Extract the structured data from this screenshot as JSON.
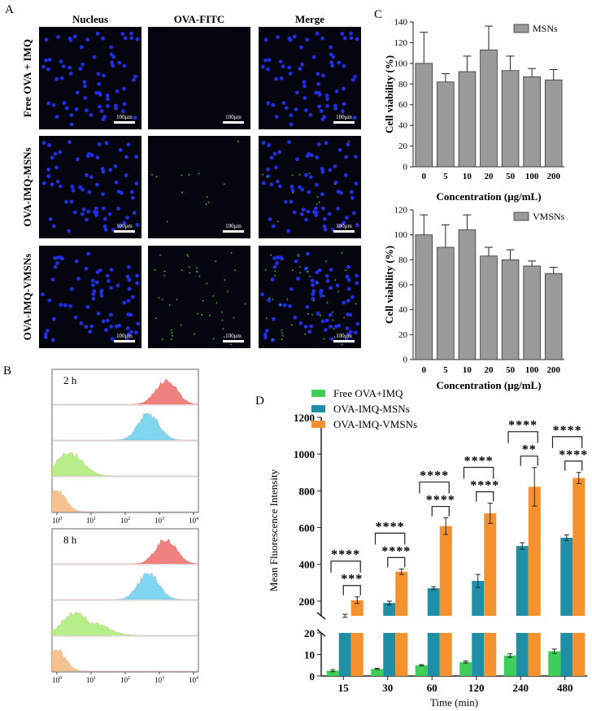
{
  "panels": {
    "a": "A",
    "b": "B",
    "c": "C",
    "d": "D"
  },
  "panel_a": {
    "column_headers": [
      "Nucleus",
      "OVA-FITC",
      "Merge"
    ],
    "row_labels": [
      "Free OVA + IMQ",
      "OVA-IMQ-MSNs",
      "OVA-IMQ-VMSNs"
    ],
    "scale_bar": "100μm"
  },
  "colors": {
    "nucleus_bg": "#050510",
    "dot_blue": "#2030e0",
    "dot_green": "#2ecc40",
    "bar_gray": "#9a9a9a",
    "green": "#3ecf5a",
    "teal": "#1f8fa6",
    "orange": "#f5922f",
    "red_hist": "#f08080",
    "blue_hist": "#7fd6ee",
    "green_hist": "#b6ef8a",
    "orange_hist": "#f6c28e"
  },
  "panel_b": {
    "time_labels": [
      "2 h",
      "8 h"
    ],
    "x_ticks": [
      "10^0",
      "10^1",
      "10^2",
      "10^3",
      "10^4"
    ],
    "x_tick_base": "10",
    "x_tick_exp": [
      "0",
      "1",
      "2",
      "3",
      "4"
    ]
  },
  "chart_data": [
    {
      "type": "bar",
      "panel": "C-top",
      "legend": "MSNs",
      "categories": [
        "0",
        "5",
        "10",
        "20",
        "50",
        "100",
        "200"
      ],
      "values": [
        100,
        82,
        92,
        113,
        93,
        87,
        84
      ],
      "errors": [
        30,
        8,
        15,
        23,
        14,
        8,
        10
      ],
      "xlabel": "Concentration (μg/mL)",
      "ylabel": "Cell viability (%)",
      "ylim": [
        0,
        140
      ],
      "yticks": [
        0,
        20,
        40,
        60,
        80,
        100,
        120,
        140
      ]
    },
    {
      "type": "bar",
      "panel": "C-bottom",
      "legend": "VMSNs",
      "categories": [
        "0",
        "5",
        "10",
        "20",
        "50",
        "100",
        "200"
      ],
      "values": [
        100,
        90,
        104,
        83,
        80,
        75,
        69
      ],
      "errors": [
        16,
        18,
        12,
        7,
        8,
        4,
        5
      ],
      "xlabel": "Concentration (μg/mL)",
      "ylabel": "Cell viability (%)",
      "ylim": [
        0,
        120
      ],
      "yticks": [
        0,
        20,
        40,
        60,
        80,
        100,
        120
      ]
    },
    {
      "type": "bar",
      "panel": "D",
      "categories": [
        "15",
        "30",
        "60",
        "120",
        "240",
        "480"
      ],
      "series": [
        {
          "name": "Free OVA+IMQ",
          "values": [
            2.5,
            3.3,
            5.0,
            6.5,
            9.5,
            11.5
          ],
          "errors": [
            0.5,
            0.3,
            0.3,
            0.5,
            0.8,
            1.0
          ]
        },
        {
          "name": "OVA-IMQ-MSNs",
          "values": [
            120,
            190,
            270,
            310,
            500,
            545
          ],
          "errors": [
            8,
            10,
            8,
            35,
            18,
            15
          ]
        },
        {
          "name": "OVA-IMQ-VMSNs",
          "values": [
            205,
            360,
            608,
            678,
            822,
            870
          ],
          "errors": [
            18,
            15,
            45,
            55,
            105,
            30
          ]
        }
      ],
      "xlabel": "Time (min)",
      "ylabel": "Mean Fluorescence Intensity",
      "axis_break": {
        "lower": [
          0,
          20
        ],
        "upper": [
          120,
          1200
        ]
      },
      "yticks_lower": [
        0,
        10,
        20
      ],
      "yticks_upper": [
        200,
        400,
        600,
        800,
        1000,
        1200
      ],
      "significance": [
        {
          "outer": "****",
          "inner": "***"
        },
        {
          "outer": "****",
          "inner": "****"
        },
        {
          "outer": "****",
          "inner": "****"
        },
        {
          "outer": "****",
          "inner": "****"
        },
        {
          "outer": "****",
          "inner": "**"
        },
        {
          "outer": "****",
          "inner": "****"
        }
      ]
    }
  ]
}
